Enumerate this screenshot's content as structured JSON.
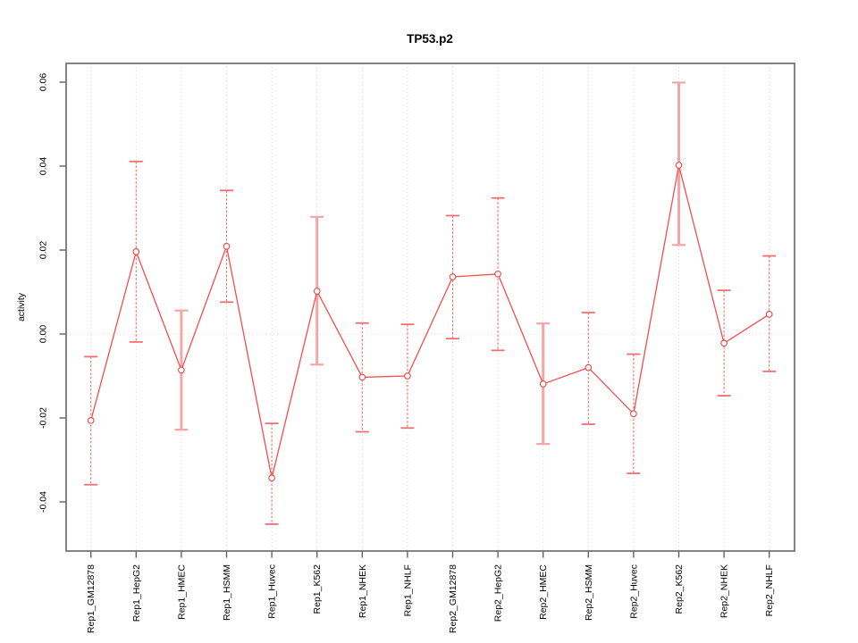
{
  "window": {
    "title": "TP53.p2"
  },
  "chart_data": {
    "type": "line",
    "title": "TP53.p2",
    "xlabel": "",
    "ylabel": "activity",
    "legend_position": "none",
    "grid": "vertical dotted gridlines at each category; dotted horizontal line at y=0",
    "point_style": "open-circle with error bars",
    "categories": [
      "Rep1_GM12878",
      "Rep1_HepG2",
      "Rep1_HMEC",
      "Rep1_HSMM",
      "Rep1_Huvec",
      "Rep1_K562",
      "Rep1_NHEK",
      "Rep1_NHLF",
      "Rep2_GM12878",
      "Rep2_HepG2",
      "Rep2_HMEC",
      "Rep2_HSMM",
      "Rep2_Huvec",
      "Rep2_K562",
      "Rep2_NHEK",
      "Rep2_NHLF"
    ],
    "series": [
      {
        "name": "activity",
        "values": [
          -0.0206,
          0.0196,
          -0.0086,
          0.0209,
          -0.0343,
          0.0102,
          -0.0103,
          -0.01,
          0.0136,
          0.0143,
          -0.0119,
          -0.008,
          -0.019,
          0.0402,
          -0.0022,
          0.0047
        ],
        "ci_lower": [
          -0.0359,
          -0.0019,
          -0.0228,
          0.0076,
          -0.0453,
          -0.0073,
          -0.0233,
          -0.0224,
          -0.0011,
          -0.0039,
          -0.0262,
          -0.0215,
          -0.0332,
          0.0212,
          -0.0147,
          -0.0089
        ],
        "ci_upper": [
          -0.0054,
          0.0411,
          0.0056,
          0.0342,
          -0.0213,
          0.0279,
          0.0026,
          0.0023,
          0.0282,
          0.0324,
          0.0025,
          0.0051,
          -0.0048,
          0.0599,
          0.0104,
          0.0186
        ],
        "thick_error_bar": [
          false,
          false,
          true,
          false,
          false,
          true,
          false,
          false,
          false,
          false,
          true,
          false,
          false,
          true,
          false,
          false
        ]
      }
    ],
    "yticks": [
      -0.04,
      -0.02,
      0.0,
      0.02,
      0.04,
      0.06
    ],
    "ytick_labels": [
      "-0.04",
      "-0.02",
      "0.00",
      "0.02",
      "0.04",
      "0.06"
    ],
    "ylim": [
      -0.0517,
      0.0645
    ],
    "colors": {
      "series_line": "#f04f4f",
      "point_stroke": "#e84545",
      "point_fill": "#ffffff",
      "error_bar_thin": "#f07070",
      "error_bar_thick": "#f6a5a5",
      "grid": "#d8d8d8",
      "box": "#6e6e6e",
      "text": "#000000",
      "background": "#ffffff"
    }
  }
}
